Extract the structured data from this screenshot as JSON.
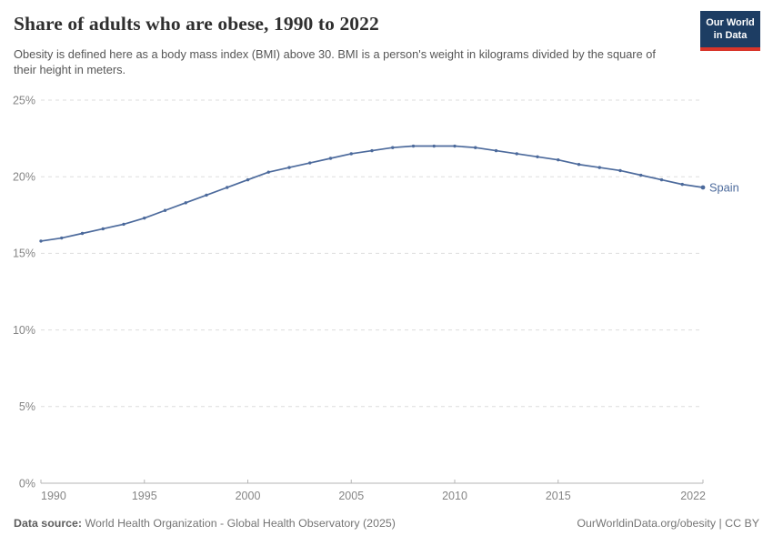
{
  "header": {
    "title": "Share of adults who are obese, 1990 to 2022",
    "subtitle": "Obesity is defined here as a body mass index (BMI) above 30. BMI is a person's weight in kilograms divided by the square of their height in meters.",
    "logo": {
      "line1": "Our World",
      "line2": "in Data",
      "bg_color": "#1d3d63",
      "accent_color": "#d8352a"
    }
  },
  "footer": {
    "datasource_label": "Data source:",
    "datasource_value": "World Health Organization - Global Health Observatory (2025)",
    "link": "OurWorldinData.org/obesity | CC BY"
  },
  "chart_data": {
    "type": "line",
    "title": "Share of adults who are obese, 1990 to 2022",
    "xlabel": "",
    "ylabel": "",
    "xlim": [
      1990,
      2022
    ],
    "ylim": [
      0,
      25
    ],
    "xticks": [
      1990,
      1995,
      2000,
      2005,
      2010,
      2015,
      2022
    ],
    "yticks": [
      0,
      5,
      10,
      15,
      20,
      25
    ],
    "ytick_suffix": "%",
    "grid": "horizontal-dashed",
    "legend_position": "end-of-line-label",
    "colors": {
      "line": "#4C6A9C",
      "gridline": "#dddddd",
      "axis": "#b5b5b5",
      "tick_label": "#858585"
    },
    "series": [
      {
        "name": "Spain",
        "color": "#4C6A9C",
        "x": [
          1990,
          1991,
          1992,
          1993,
          1994,
          1995,
          1996,
          1997,
          1998,
          1999,
          2000,
          2001,
          2002,
          2003,
          2004,
          2005,
          2006,
          2007,
          2008,
          2009,
          2010,
          2011,
          2012,
          2013,
          2014,
          2015,
          2016,
          2017,
          2018,
          2019,
          2020,
          2021,
          2022
        ],
        "values": [
          15.8,
          16.0,
          16.3,
          16.6,
          16.9,
          17.3,
          17.8,
          18.3,
          18.8,
          19.3,
          19.8,
          20.3,
          20.6,
          20.9,
          21.2,
          21.5,
          21.7,
          21.9,
          22.0,
          22.0,
          22.0,
          21.9,
          21.7,
          21.5,
          21.3,
          21.1,
          20.8,
          20.6,
          20.4,
          20.1,
          19.8,
          19.5,
          19.3
        ]
      }
    ]
  }
}
